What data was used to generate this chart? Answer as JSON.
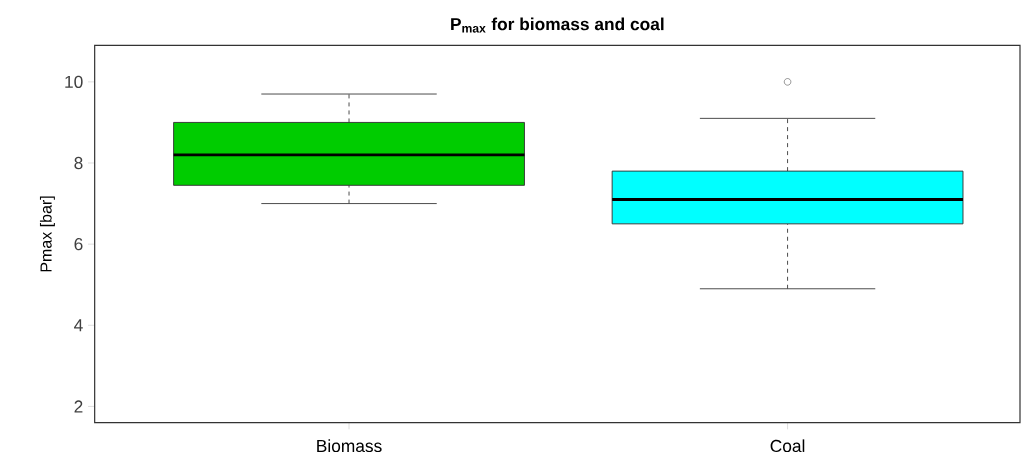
{
  "chart_data": {
    "type": "box",
    "title": "P$_{max}$ for biomass and coal",
    "ylabel": "Pmax [bar]",
    "categories": [
      "Biomass",
      "Coal"
    ],
    "colors": [
      "#00cc00",
      "#00ffff"
    ],
    "boxes": [
      {
        "low": 7.0,
        "q1": 7.45,
        "median": 8.2,
        "q3": 9.0,
        "high": 9.7
      },
      {
        "low": 4.9,
        "q1": 6.5,
        "median": 7.1,
        "q3": 7.8,
        "high": 9.1,
        "outliers": [
          10.0
        ]
      }
    ],
    "ylim": [
      1.6,
      10.9
    ],
    "yticks": [
      2,
      4,
      6,
      8,
      10
    ],
    "grid": false
  }
}
